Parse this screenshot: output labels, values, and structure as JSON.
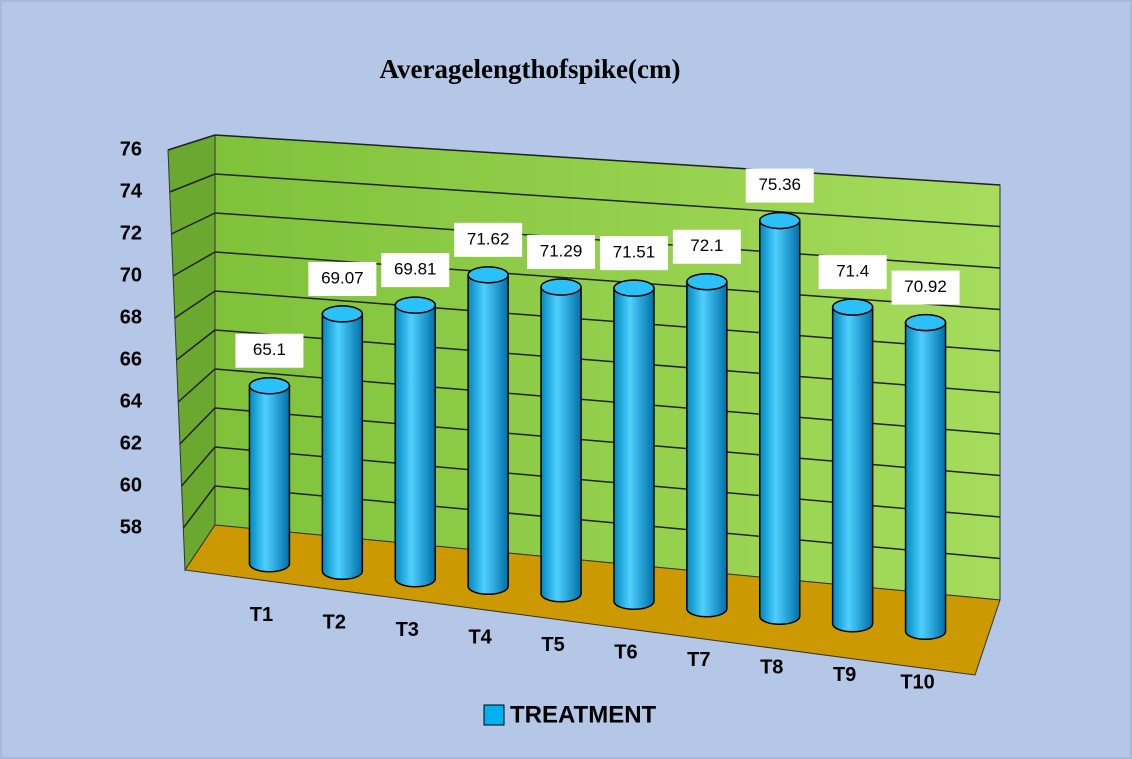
{
  "chart_data": {
    "type": "bar3d",
    "title": "Averagelengthofspike(cm)",
    "categories": [
      "T1",
      "T2",
      "T3",
      "T4",
      "T5",
      "T6",
      "T7",
      "T8",
      "T9",
      "T10"
    ],
    "series": [
      {
        "name": "TREATMENT",
        "color": "#00b0f0",
        "values": [
          65.1,
          69.07,
          69.81,
          71.62,
          71.29,
          71.51,
          72.1,
          75.36,
          71.4,
          70.92
        ]
      }
    ],
    "ylim": [
      56,
      76
    ],
    "yticks": [
      58,
      60,
      62,
      64,
      66,
      68,
      70,
      72,
      74,
      76
    ],
    "grid": true
  }
}
